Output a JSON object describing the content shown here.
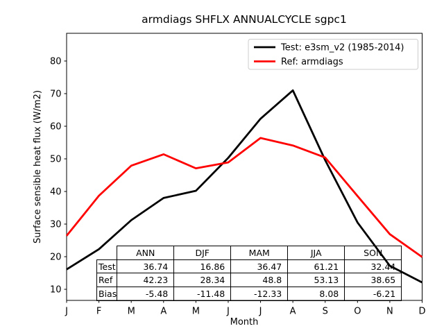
{
  "figure": {
    "title": "armdiags SHFLX ANNUALCYCLE sgpc1",
    "xlabel": "Month",
    "ylabel": "Surface sensible heat flux (W/m2)"
  },
  "chart_data": {
    "type": "line",
    "title": "armdiags SHFLX ANNUALCYCLE sgpc1",
    "xlabel": "Month",
    "ylabel": "Surface sensible heat flux (W/m2)",
    "categories": [
      "J",
      "F",
      "M",
      "A",
      "M",
      "J",
      "J",
      "A",
      "S",
      "O",
      "N",
      "D"
    ],
    "yticks": [
      10,
      20,
      30,
      40,
      50,
      60,
      70,
      80
    ],
    "ylim": [
      6.6,
      88.5
    ],
    "grid": false,
    "legend_position": "upper right",
    "series": [
      {
        "name": "Test: e3sm_v2 (1985-2014)",
        "color": "#000000",
        "values": [
          16.1,
          22.3,
          31.2,
          38.0,
          40.2,
          50.3,
          62.3,
          71.0,
          49.6,
          30.5,
          17.2,
          12.1
        ]
      },
      {
        "name": "Ref: armdiags",
        "color": "#ff0000",
        "values": [
          26.4,
          38.7,
          47.9,
          51.4,
          47.1,
          48.9,
          56.4,
          54.1,
          50.4,
          38.6,
          26.9,
          19.9
        ]
      }
    ],
    "table": {
      "col_headers": [
        "ANN",
        "DJF",
        "MAM",
        "JJA",
        "SON"
      ],
      "rows": [
        {
          "label": "Test",
          "values": [
            "36.74",
            "16.86",
            "36.47",
            "61.21",
            "32.44"
          ]
        },
        {
          "label": "Ref",
          "values": [
            "42.23",
            "28.34",
            "48.8",
            "53.13",
            "38.65"
          ]
        },
        {
          "label": "Bias",
          "values": [
            "-5.48",
            "-11.48",
            "-12.33",
            "8.08",
            "-6.21"
          ]
        }
      ]
    }
  }
}
